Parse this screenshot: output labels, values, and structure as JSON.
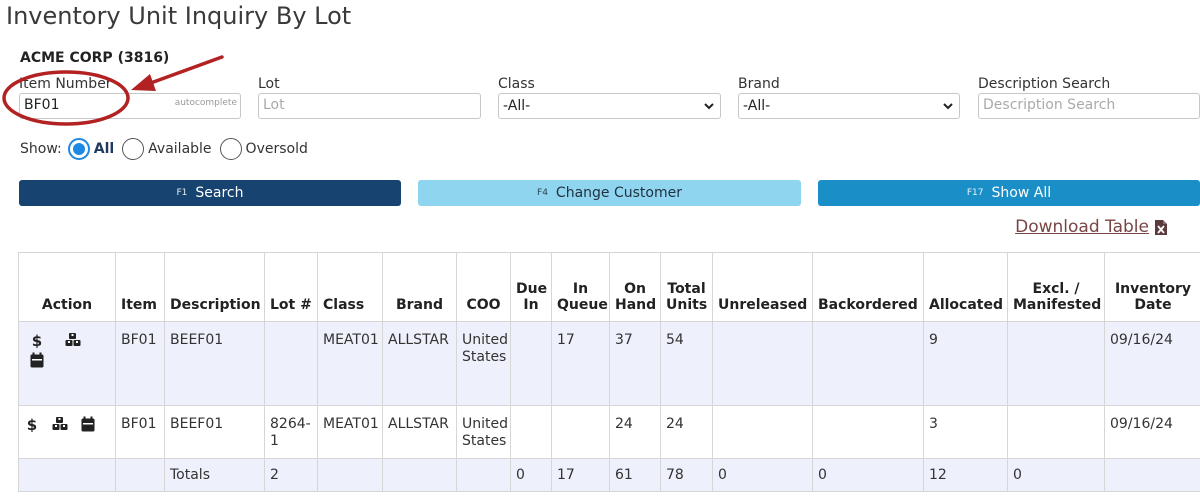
{
  "page": {
    "title": "Inventory Unit Inquiry By Lot",
    "customer": "ACME CORP (3816)"
  },
  "filters": {
    "item_number": {
      "label": "Item Number",
      "value": "BF01",
      "hint": "autocomplete"
    },
    "lot": {
      "label": "Lot",
      "placeholder": "Lot"
    },
    "class": {
      "label": "Class",
      "selected": "-All-"
    },
    "brand": {
      "label": "Brand",
      "selected": "-All-"
    },
    "description": {
      "label": "Description Search",
      "placeholder": "Description Search"
    }
  },
  "show": {
    "label": "Show:",
    "options": [
      {
        "label": "All",
        "checked": true
      },
      {
        "label": "Available",
        "checked": false
      },
      {
        "label": "Oversold",
        "checked": false
      }
    ]
  },
  "buttons": {
    "search": {
      "key": "F1",
      "label": "Search"
    },
    "change_customer": {
      "key": "F4",
      "label": "Change Customer"
    },
    "show_all": {
      "key": "F17",
      "label": "Show All"
    }
  },
  "download": {
    "label": "Download Table",
    "icon": "excel-file-icon"
  },
  "table": {
    "headers": {
      "action": "Action",
      "item": "Item",
      "description": "Description",
      "lot": "Lot #",
      "class": "Class",
      "brand": "Brand",
      "coo": "COO",
      "due_in_1": "Due",
      "due_in_2": "In",
      "in_queue_1": "In",
      "in_queue_2": "Queue",
      "on_hand_1": "On",
      "on_hand_2": "Hand",
      "total_units_1": "Total",
      "total_units_2": "Units",
      "unreleased": "Unreleased",
      "backordered": "Backordered",
      "allocated": "Allocated",
      "excl_1": "Excl. /",
      "excl_2": "Manifested",
      "inv_date_1": "Inventory",
      "inv_date_2": "Date"
    },
    "rows": [
      {
        "item": "BF01",
        "description": "BEEF01",
        "lot": "",
        "class": "MEAT01",
        "brand": "ALLSTAR",
        "coo_1": "United",
        "coo_2": "States",
        "due_in": "",
        "in_queue": "17",
        "on_hand": "37",
        "total_units": "54",
        "unreleased": "",
        "backordered": "",
        "allocated": "9",
        "excl": "",
        "inventory_date": "09/16/24"
      },
      {
        "item": "BF01",
        "description": "BEEF01",
        "lot_1": "8264-",
        "lot_2": "1",
        "class": "MEAT01",
        "brand": "ALLSTAR",
        "coo_1": "United",
        "coo_2": "States",
        "due_in": "",
        "in_queue": "",
        "on_hand": "24",
        "total_units": "24",
        "unreleased": "",
        "backordered": "",
        "allocated": "3",
        "excl": "",
        "inventory_date": "09/16/24"
      }
    ],
    "totals": {
      "label": "Totals",
      "lot": "2",
      "due_in": "0",
      "in_queue": "17",
      "on_hand": "61",
      "total_units": "78",
      "unreleased": "0",
      "backordered": "0",
      "allocated": "12",
      "excl": "0"
    }
  },
  "icons": {
    "price": "dollar-icon",
    "lots": "boxes-icon",
    "calendar": "calendar-icon"
  },
  "colors": {
    "search_button": "#16436f",
    "change_customer_button": "#90d5ef",
    "show_all_button": "#1a8fc7",
    "annotation": "#b22222",
    "radio_checked": "#1e88e5"
  }
}
